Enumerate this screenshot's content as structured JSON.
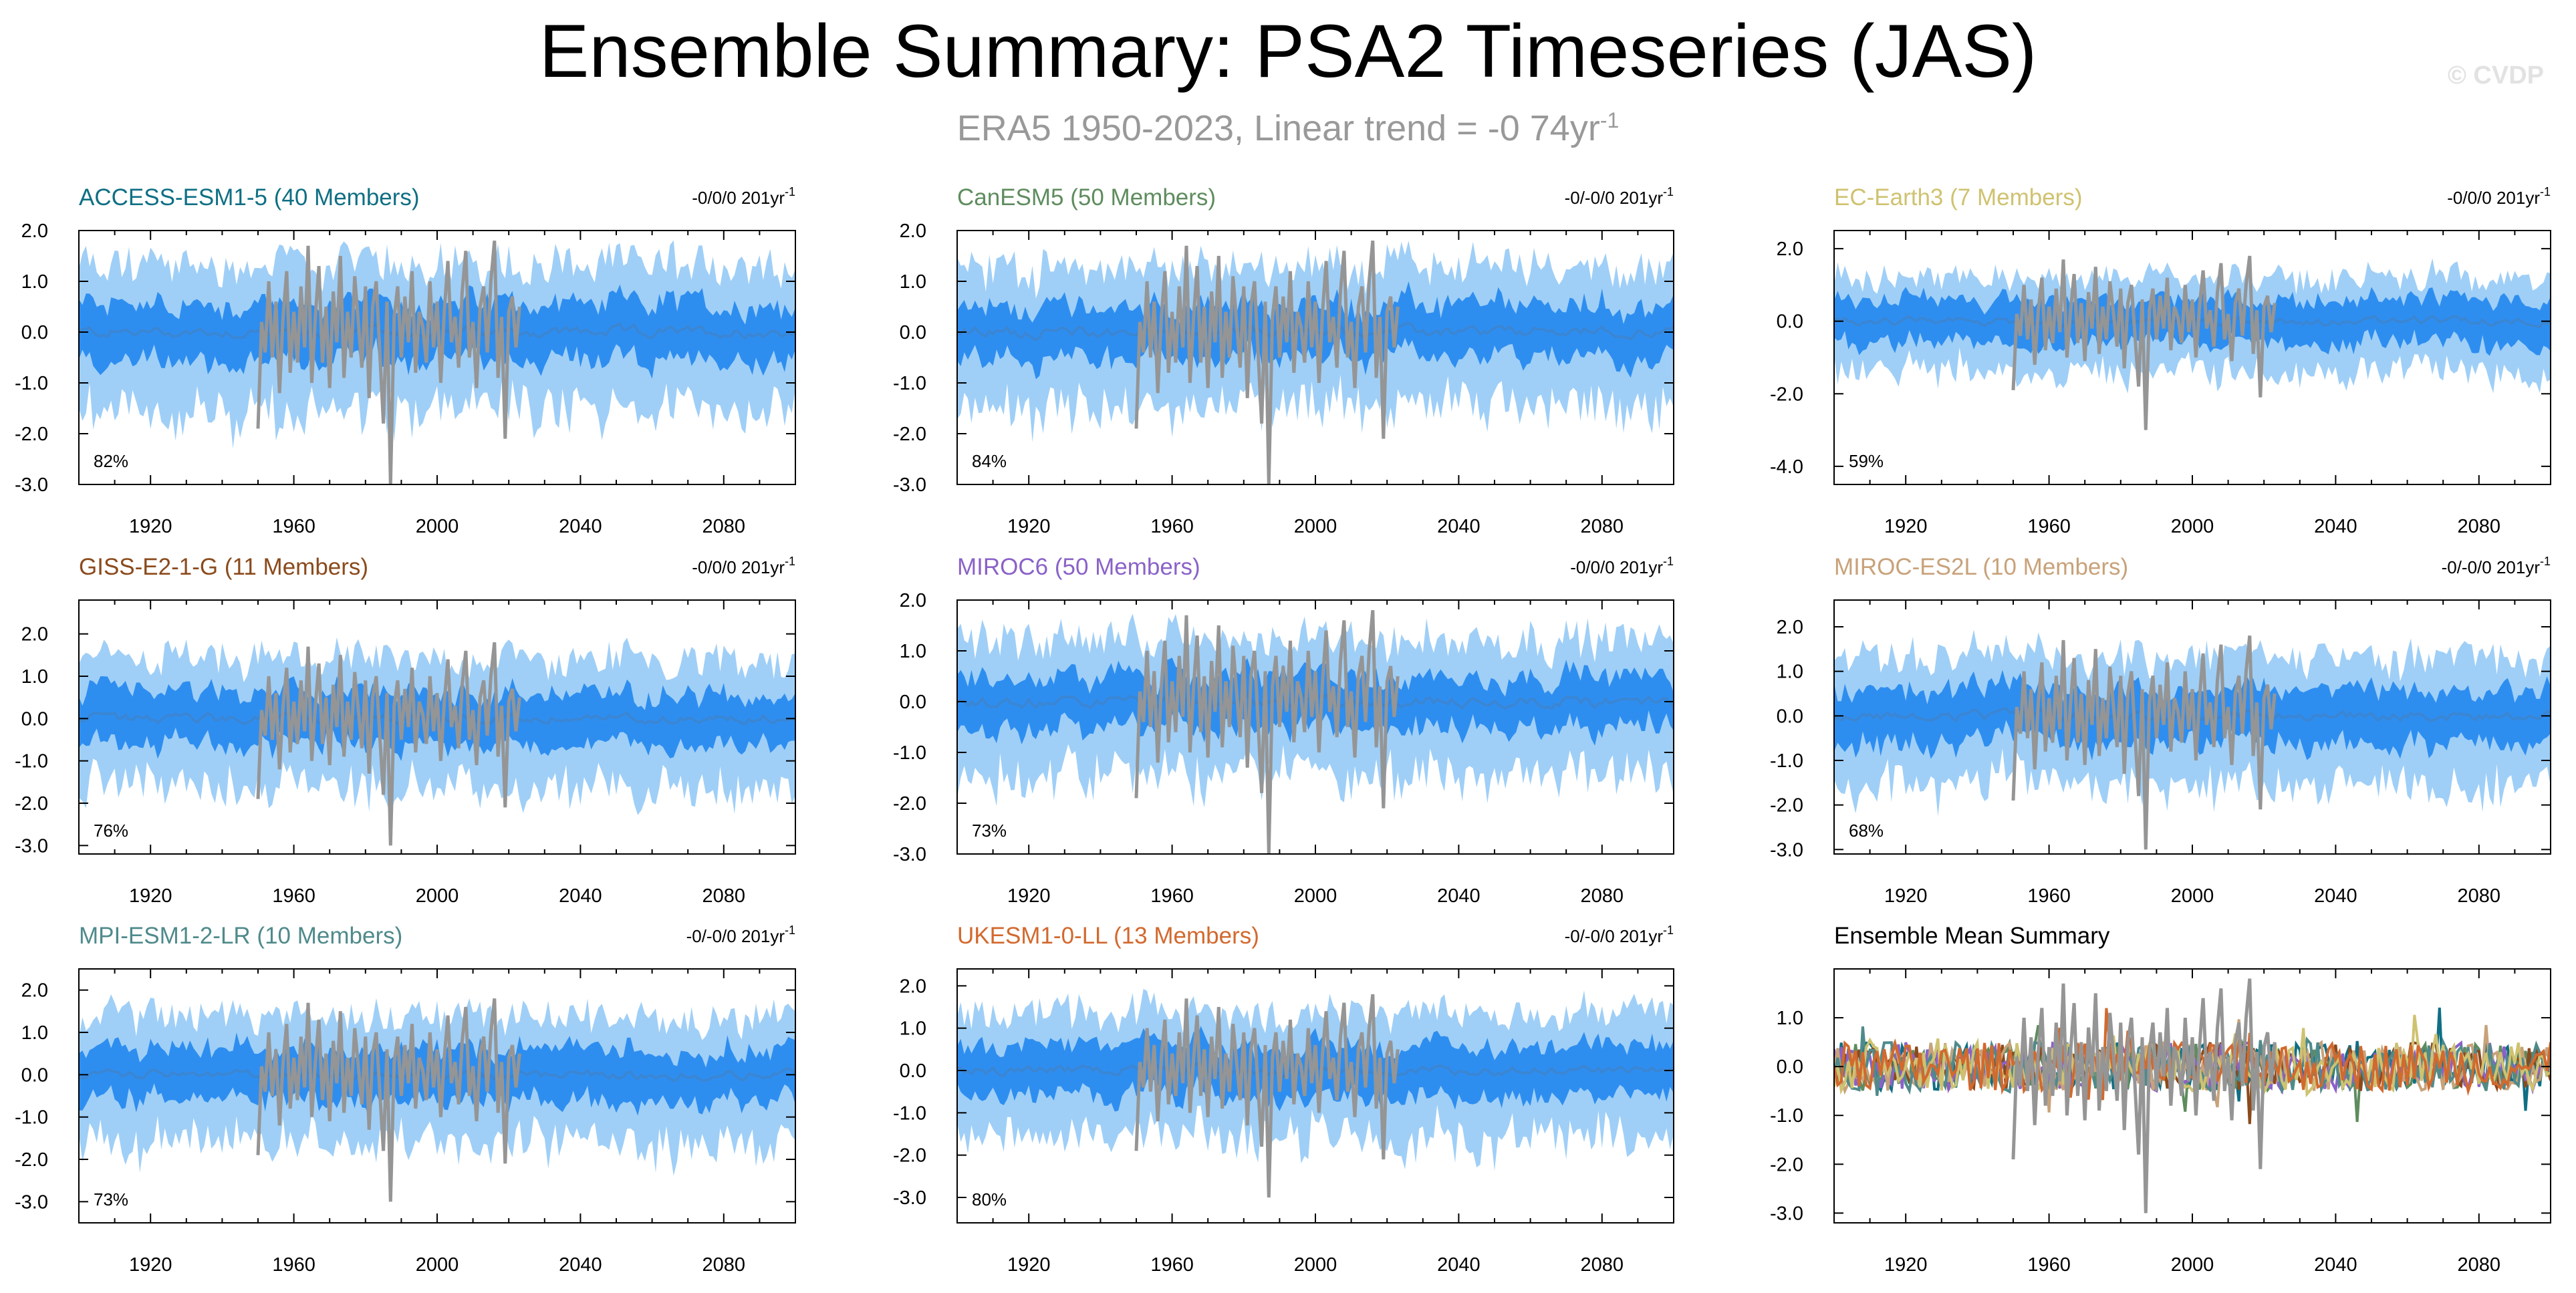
{
  "title": "Ensemble Summary: PSA2 Timeseries (JAS)",
  "subtitle": {
    "text": "ERA5 1950-2023, Linear trend = -0 74yr",
    "sup": "-1"
  },
  "watermark": "© CVDP",
  "colors": {
    "band_outer": "#9fcff7",
    "band_inner": "#2e8ef0",
    "mean_line": "#3a86d4",
    "obs_line": "#959595"
  },
  "chart_data": [
    {
      "type": "area",
      "title": "ACCESS-ESM1-5 (40 Members)",
      "title_color": "#0f6f84",
      "trend": "-0/0/0 201yr",
      "trend_sup": "-1",
      "percent": "82%",
      "xlim": [
        1900,
        2100
      ],
      "ylim": [
        -3.0,
        2.0
      ],
      "xticks": [
        1920,
        1960,
        2000,
        2040,
        2080
      ],
      "yticks": [
        2.0,
        1.0,
        0.0,
        -1.0,
        -2.0,
        -3.0
      ],
      "ytick_labels": [
        "2.0",
        "1.0",
        "0.0",
        "-1.0",
        "-2.0",
        "-3.0"
      ],
      "outer_amp": 1.3,
      "inner_amp": 0.55
    },
    {
      "type": "area",
      "title": "CanESM5 (50 Members)",
      "title_color": "#5e8c5e",
      "trend": "-0/-0/0 201yr",
      "trend_sup": "-1",
      "percent": "84%",
      "xlim": [
        1900,
        2100
      ],
      "ylim": [
        -3.0,
        2.0
      ],
      "xticks": [
        1920,
        1960,
        2000,
        2040,
        2080
      ],
      "yticks": [
        2.0,
        1.0,
        0.0,
        -1.0,
        -2.0,
        -3.0
      ],
      "ytick_labels": [
        "2.0",
        "1.0",
        "0.0",
        "-1.0",
        "-2.0",
        "-3.0"
      ],
      "outer_amp": 1.25,
      "inner_amp": 0.5
    },
    {
      "type": "area",
      "title": "EC-Earth3 (7 Members)",
      "title_color": "#cfc270",
      "trend": "-0/0/0 201yr",
      "trend_sup": "-1",
      "percent": "59%",
      "xlim": [
        1900,
        2100
      ],
      "ylim": [
        -4.5,
        2.5
      ],
      "xticks": [
        1920,
        1960,
        2000,
        2040,
        2080
      ],
      "yticks": [
        2.0,
        0.0,
        -2.0,
        -4.0
      ],
      "ytick_labels": [
        "2.0",
        "0.0",
        "-2.0",
        "-4.0"
      ],
      "outer_amp": 1.15,
      "inner_amp": 0.6
    },
    {
      "type": "area",
      "title": "GISS-E2-1-G (11 Members)",
      "title_color": "#8b4a1c",
      "trend": "-0/0/0 201yr",
      "trend_sup": "-1",
      "percent": "76%",
      "xlim": [
        1900,
        2100
      ],
      "ylim": [
        -3.2,
        2.8
      ],
      "xticks": [
        1920,
        1960,
        2000,
        2040,
        2080
      ],
      "yticks": [
        2.0,
        1.0,
        0.0,
        -1.0,
        -2.0,
        -3.0
      ],
      "ytick_labels": [
        "2.0",
        "1.0",
        "0.0",
        "-1.0",
        "-2.0",
        "-3.0"
      ],
      "outer_amp": 1.35,
      "inner_amp": 0.6
    },
    {
      "type": "area",
      "title": "MIROC6 (50 Members)",
      "title_color": "#8a62c8",
      "trend": "-0/0/0 201yr",
      "trend_sup": "-1",
      "percent": "73%",
      "xlim": [
        1900,
        2100
      ],
      "ylim": [
        -3.0,
        2.0
      ],
      "xticks": [
        1920,
        1960,
        2000,
        2040,
        2080
      ],
      "yticks": [
        2.0,
        1.0,
        0.0,
        -1.0,
        -2.0,
        -3.0
      ],
      "ytick_labels": [
        "2.0",
        "1.0",
        "0.0",
        "-1.0",
        "-2.0",
        "-3.0"
      ],
      "outer_amp": 1.2,
      "inner_amp": 0.5
    },
    {
      "type": "area",
      "title": "MIROC-ES2L (10 Members)",
      "title_color": "#c8a27a",
      "trend": "-0/-0/0 201yr",
      "trend_sup": "-1",
      "percent": "68%",
      "xlim": [
        1900,
        2100
      ],
      "ylim": [
        -3.1,
        2.6
      ],
      "xticks": [
        1920,
        1960,
        2000,
        2040,
        2080
      ],
      "yticks": [
        2.0,
        1.0,
        0.0,
        -1.0,
        -2.0,
        -3.0
      ],
      "ytick_labels": [
        "2.0",
        "1.0",
        "0.0",
        "-1.0",
        "-2.0",
        "-3.0"
      ],
      "outer_amp": 1.3,
      "inner_amp": 0.6
    },
    {
      "type": "area",
      "title": "MPI-ESM1-2-LR (10 Members)",
      "title_color": "#4f8a8b",
      "trend": "-0/-0/0 201yr",
      "trend_sup": "-1",
      "percent": "73%",
      "xlim": [
        1900,
        2100
      ],
      "ylim": [
        -3.5,
        2.5
      ],
      "xticks": [
        1920,
        1960,
        2000,
        2040,
        2080
      ],
      "yticks": [
        2.0,
        1.0,
        0.0,
        -1.0,
        -2.0,
        -3.0
      ],
      "ytick_labels": [
        "2.0",
        "1.0",
        "0.0",
        "-1.0",
        "-2.0",
        "-3.0"
      ],
      "outer_amp": 1.35,
      "inner_amp": 0.6
    },
    {
      "type": "area",
      "title": "UKESM1-0-LL (13 Members)",
      "title_color": "#d2692e",
      "trend": "-0/-0/0 201yr",
      "trend_sup": "-1",
      "percent": "80%",
      "xlim": [
        1900,
        2100
      ],
      "ylim": [
        -3.6,
        2.4
      ],
      "xticks": [
        1920,
        1960,
        2000,
        2040,
        2080
      ],
      "yticks": [
        2.0,
        1.0,
        0.0,
        -1.0,
        -2.0,
        -3.0
      ],
      "ytick_labels": [
        "2.0",
        "1.0",
        "0.0",
        "-1.0",
        "-2.0",
        "-3.0"
      ],
      "outer_amp": 1.3,
      "inner_amp": 0.6
    },
    {
      "type": "line",
      "title": "Ensemble Mean Summary",
      "title_color": "#000000",
      "trend": "",
      "trend_sup": "",
      "percent": "",
      "xlim": [
        1900,
        2100
      ],
      "ylim": [
        -3.2,
        2.0
      ],
      "xticks": [
        1920,
        1960,
        2000,
        2040,
        2080
      ],
      "yticks": [
        1.0,
        0.0,
        -1.0,
        -2.0,
        -3.0
      ],
      "ytick_labels": [
        "1.0",
        "0.0",
        "-1.0",
        "-2.0",
        "-3.0"
      ],
      "series": [
        {
          "name": "ACCESS-ESM1-5",
          "color": "#0f6f84"
        },
        {
          "name": "CanESM5",
          "color": "#5e8c5e"
        },
        {
          "name": "GISS-E2-1-G",
          "color": "#8b4a1c"
        },
        {
          "name": "MIROC6",
          "color": "#8a62c8"
        },
        {
          "name": "MIROC-ES2L",
          "color": "#c8a27a"
        },
        {
          "name": "MPI-ESM1-2-LR",
          "color": "#4f8a8b"
        },
        {
          "name": "EC-Earth3",
          "color": "#cfc270"
        },
        {
          "name": "UKESM1-0-LL",
          "color": "#d2692e"
        }
      ]
    }
  ],
  "observations": {
    "name": "ERA5",
    "years": [
      1950,
      1951,
      1952,
      1953,
      1954,
      1955,
      1956,
      1957,
      1958,
      1959,
      1960,
      1961,
      1962,
      1963,
      1964,
      1965,
      1966,
      1967,
      1968,
      1969,
      1970,
      1971,
      1972,
      1973,
      1974,
      1975,
      1976,
      1977,
      1978,
      1979,
      1980,
      1981,
      1982,
      1983,
      1984,
      1985,
      1986,
      1987,
      1988,
      1989,
      1990,
      1991,
      1992,
      1993,
      1994,
      1995,
      1996,
      1997,
      1998,
      1999,
      2000,
      2001,
      2002,
      2003,
      2004,
      2005,
      2006,
      2007,
      2008,
      2009,
      2010,
      2011,
      2012,
      2013,
      2014,
      2015,
      2016,
      2017,
      2018,
      2019,
      2020,
      2021,
      2022,
      2023
    ],
    "values": [
      -1.9,
      0.2,
      -0.4,
      1.0,
      -0.5,
      0.6,
      -1.2,
      0.3,
      1.2,
      -0.8,
      0.4,
      -0.6,
      0.9,
      -0.3,
      1.7,
      -1.0,
      0.3,
      1.3,
      -0.6,
      0.5,
      -1.1,
      0.8,
      -0.2,
      1.5,
      -0.9,
      0.4,
      -0.5,
      1.1,
      0.2,
      -0.7,
      0.9,
      -1.3,
      0.5,
      1.0,
      -0.4,
      -1.8,
      0.6,
      -3.0,
      0.3,
      0.9,
      -0.5,
      0.7,
      -0.2,
      1.2,
      -0.8,
      0.4,
      0.1,
      -0.6,
      1.0,
      -0.3,
      0.6,
      -1.0,
      0.4,
      1.4,
      -0.2,
      0.3,
      -0.7,
      0.8,
      1.6,
      -0.5,
      0.2,
      -1.1,
      0.5,
      0.9,
      -0.4,
      1.0,
      1.8,
      -0.9,
      0.3,
      -2.1,
      0.4,
      0.7,
      -0.3,
      0.5
    ]
  }
}
